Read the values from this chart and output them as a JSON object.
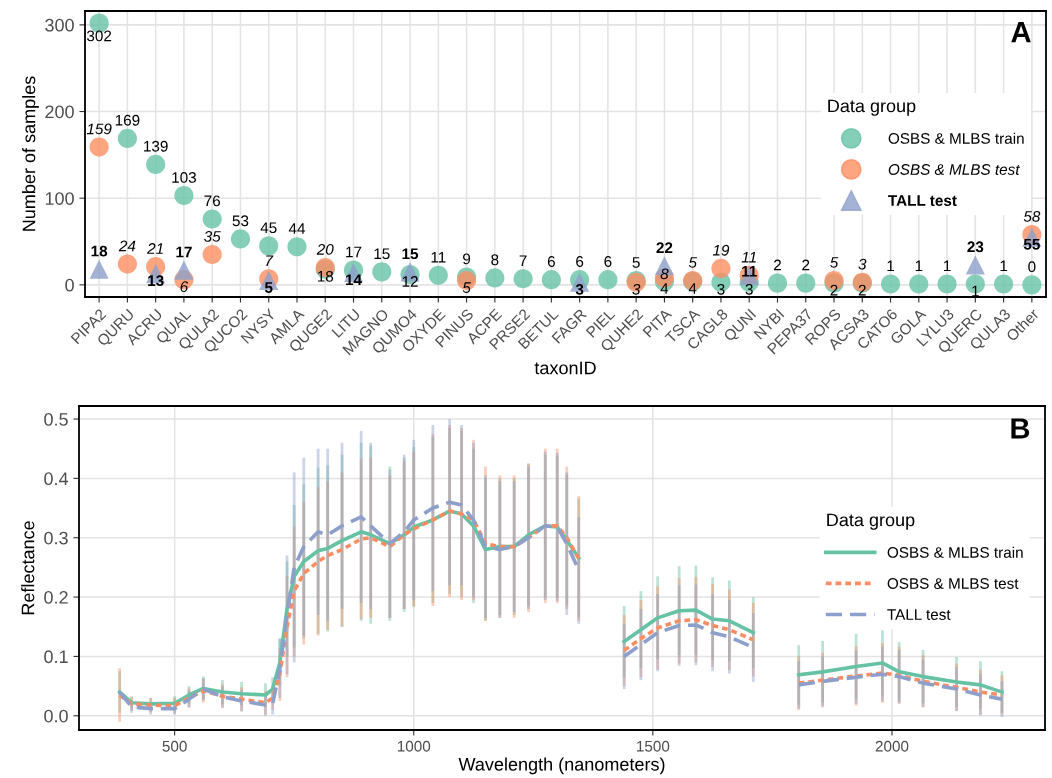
{
  "chart_data": [
    {
      "type": "scatter",
      "categories": [
        "PIPA2",
        "QURU",
        "ACRU",
        "QUAL",
        "QULA2",
        "QUCO2",
        "NYSY",
        "AMLA",
        "QUGE2",
        "LITU",
        "MAGNO",
        "QUMO4",
        "OXYDE",
        "PINUS",
        "ACPE",
        "PRSE2",
        "BETUL",
        "FAGR",
        "PIEL",
        "QUHE2",
        "PITA",
        "TSCA",
        "CAGL8",
        "QUNI",
        "NYBI",
        "PEPA37",
        "ROPS",
        "ACSA3",
        "CATO6",
        "GOLA",
        "LYLU3",
        "QUERC",
        "QULA3",
        "Other"
      ],
      "xlabel": "taxonID",
      "ylabel": "Number of samples",
      "ylim": [
        -14,
        316
      ],
      "yticks": [
        0,
        100,
        200,
        300
      ],
      "grid": true,
      "legend": "right",
      "legend_title": "Data group",
      "data_labels": true,
      "annotations": [
        "A"
      ],
      "series": [
        {
          "name": "OSBS & MLBS train",
          "color": "#66c2a5",
          "marker": "circle",
          "values": [
            302,
            169,
            139,
            103,
            76,
            53,
            45,
            44,
            18,
            17,
            15,
            12,
            11,
            9,
            8,
            7,
            6,
            6,
            6,
            5,
            4,
            4,
            3,
            3,
            2,
            2,
            2,
            2,
            1,
            1,
            1,
            1,
            1,
            0
          ]
        },
        {
          "name": "OSBS & MLBS test",
          "color": "#fc8d62",
          "marker": "circle",
          "values": [
            159,
            24,
            21,
            6,
            35,
            null,
            7,
            null,
            20,
            null,
            null,
            null,
            null,
            5,
            null,
            null,
            null,
            null,
            null,
            3,
            8,
            5,
            19,
            11,
            null,
            null,
            5,
            3,
            null,
            null,
            null,
            null,
            null,
            58
          ]
        },
        {
          "name": "TALL test",
          "color": "#8da0cb",
          "marker": "triangle",
          "values": [
            18,
            null,
            13,
            17,
            null,
            null,
            5,
            null,
            null,
            14,
            null,
            15,
            null,
            null,
            null,
            null,
            null,
            3,
            null,
            null,
            22,
            null,
            null,
            11,
            null,
            null,
            null,
            null,
            null,
            null,
            null,
            23,
            null,
            55
          ]
        }
      ]
    },
    {
      "type": "line",
      "xlabel": "Wavelength (nanometers)",
      "ylabel": "Reflectance",
      "xlim": [
        300,
        2320
      ],
      "xticks": [
        500,
        1000,
        1500,
        2000
      ],
      "ylim": [
        -0.024,
        0.522
      ],
      "yticks": [
        {
          "value": 0,
          "label": "0.0"
        },
        0.1,
        0.2,
        0.3,
        0.4,
        0.5
      ],
      "grid": true,
      "legend": "right",
      "legend_title": "Data group",
      "annotations": [
        "B"
      ],
      "x": [
        385,
        410,
        450,
        500,
        530,
        560,
        600,
        640,
        690,
        705,
        720,
        735,
        750,
        770,
        800,
        820,
        850,
        890,
        910,
        950,
        980,
        1000,
        1040,
        1075,
        1100,
        1125,
        1150,
        1180,
        1210,
        1240,
        1275,
        1300,
        1320,
        1345,
        1390,
        1440,
        1475,
        1510,
        1555,
        1590,
        1625,
        1660,
        1710,
        1760,
        1805,
        1855,
        1925,
        1980,
        2015,
        2065,
        2135,
        2185,
        2230
      ],
      "series": [
        {
          "name": "OSBS & MLBS train",
          "color": "#66c2a5",
          "line_style": "solid",
          "values": [
            0.04,
            0.022,
            0.02,
            0.021,
            0.035,
            0.046,
            0.04,
            0.037,
            0.035,
            0.045,
            0.09,
            0.18,
            0.235,
            0.26,
            0.278,
            0.282,
            0.295,
            0.31,
            0.305,
            0.29,
            0.305,
            0.318,
            0.33,
            0.345,
            0.34,
            0.32,
            0.28,
            0.285,
            0.285,
            0.305,
            0.32,
            0.318,
            0.296,
            0.266,
            null,
            0.125,
            0.145,
            0.165,
            0.177,
            0.178,
            0.163,
            0.16,
            0.14,
            null,
            0.069,
            0.074,
            0.083,
            0.089,
            0.074,
            0.066,
            0.057,
            0.052,
            0.04
          ],
          "errors": [
            0.035,
            0.01,
            0.01,
            0.012,
            0.015,
            0.02,
            0.02,
            0.02,
            0.02,
            0.02,
            0.04,
            0.08,
            0.12,
            0.13,
            0.14,
            0.14,
            0.145,
            0.15,
            0.15,
            0.13,
            0.13,
            0.135,
            0.14,
            0.14,
            0.14,
            0.13,
            0.12,
            0.115,
            0.115,
            0.12,
            0.12,
            0.12,
            0.11,
            0.1,
            null,
            0.06,
            0.065,
            0.07,
            0.075,
            0.075,
            0.07,
            0.068,
            0.06,
            null,
            0.05,
            0.052,
            0.055,
            0.055,
            0.05,
            0.045,
            0.042,
            0.04,
            0.035
          ]
        },
        {
          "name": "OSBS & MLBS test",
          "color": "#fc8d62",
          "line_style": "dotted",
          "values": [
            0.035,
            0.02,
            0.018,
            0.017,
            0.03,
            0.042,
            0.033,
            0.028,
            0.022,
            0.03,
            0.07,
            0.15,
            0.21,
            0.24,
            0.26,
            0.27,
            0.28,
            0.298,
            0.3,
            0.285,
            0.305,
            0.315,
            0.33,
            0.345,
            0.34,
            0.33,
            0.29,
            0.285,
            0.285,
            0.3,
            0.32,
            0.32,
            0.3,
            0.265,
            null,
            0.11,
            0.13,
            0.148,
            0.16,
            0.162,
            0.152,
            0.145,
            0.128,
            null,
            0.055,
            0.06,
            0.067,
            0.072,
            0.068,
            0.058,
            0.048,
            0.04,
            0.035
          ],
          "errors": [
            0.045,
            0.012,
            0.012,
            0.013,
            0.016,
            0.02,
            0.02,
            0.02,
            0.02,
            0.02,
            0.045,
            0.085,
            0.11,
            0.12,
            0.125,
            0.125,
            0.13,
            0.135,
            0.135,
            0.12,
            0.125,
            0.13,
            0.145,
            0.145,
            0.145,
            0.135,
            0.13,
            0.12,
            0.12,
            0.125,
            0.13,
            0.13,
            0.12,
            0.105,
            null,
            0.06,
            0.065,
            0.07,
            0.072,
            0.072,
            0.07,
            0.068,
            0.062,
            null,
            0.045,
            0.046,
            0.05,
            0.05,
            0.048,
            0.044,
            0.04,
            0.038,
            0.033
          ]
        },
        {
          "name": "TALL test",
          "color": "#8da0cb",
          "line_style": "dashed",
          "values": [
            0.04,
            0.015,
            0.012,
            0.012,
            0.028,
            0.045,
            0.032,
            0.025,
            0.018,
            0.02,
            0.08,
            0.17,
            0.25,
            0.285,
            0.31,
            0.305,
            0.32,
            0.335,
            0.32,
            0.29,
            0.31,
            0.33,
            0.35,
            0.36,
            0.355,
            0.33,
            0.285,
            0.28,
            0.285,
            0.3,
            0.32,
            0.318,
            0.29,
            0.245,
            null,
            0.1,
            0.12,
            0.14,
            0.152,
            0.153,
            0.14,
            0.133,
            0.115,
            null,
            0.052,
            0.058,
            0.065,
            0.07,
            0.066,
            0.055,
            0.045,
            0.035,
            0.028
          ],
          "errors": [
            null,
            0.01,
            0.01,
            0.01,
            0.014,
            0.018,
            0.018,
            0.018,
            0.018,
            0.018,
            0.05,
            0.1,
            0.16,
            0.15,
            0.14,
            0.145,
            0.14,
            0.145,
            0.14,
            0.125,
            0.13,
            0.135,
            0.14,
            0.14,
            0.135,
            0.13,
            0.12,
            0.115,
            0.11,
            0.12,
            0.125,
            0.125,
            0.12,
            0.09,
            null,
            0.055,
            0.06,
            0.065,
            0.068,
            0.068,
            0.065,
            0.062,
            0.058,
            null,
            0.04,
            0.042,
            0.045,
            0.046,
            0.045,
            0.04,
            0.037,
            0.035,
            0.03
          ]
        }
      ]
    }
  ]
}
